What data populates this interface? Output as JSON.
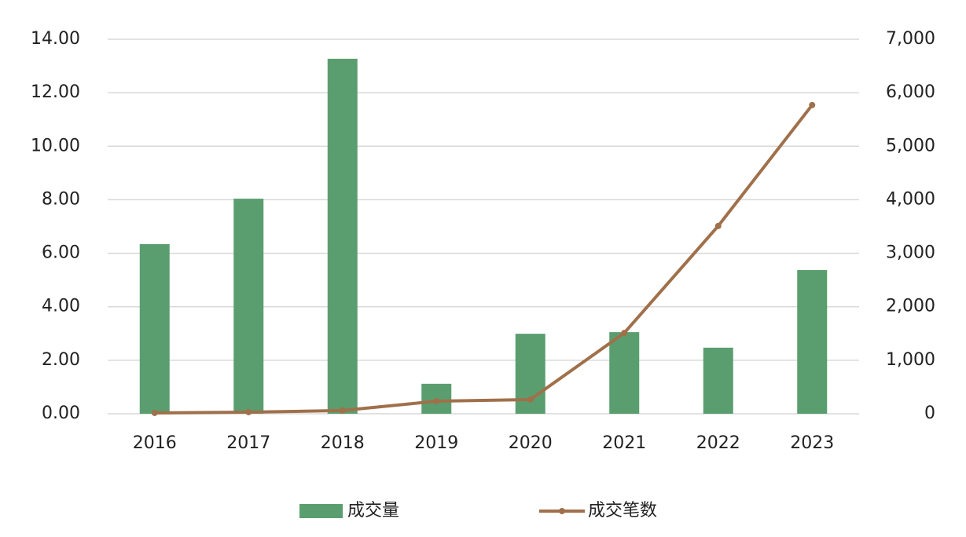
{
  "chart_data": {
    "type": "bar",
    "categories": [
      "2016",
      "2017",
      "2018",
      "2019",
      "2020",
      "2021",
      "2022",
      "2023"
    ],
    "series": [
      {
        "name": "成交量",
        "type": "bar",
        "color": "#5a9e6f",
        "values": [
          6.34,
          8.04,
          13.27,
          1.12,
          2.99,
          3.05,
          2.47,
          5.37
        ]
      },
      {
        "name": "成交笔数",
        "type": "line",
        "axis": "y2",
        "color": "#a0704a",
        "values": [
          15,
          30,
          60,
          235,
          265,
          1510,
          3510,
          5770
        ]
      }
    ],
    "ylim": [
      0,
      14
    ],
    "yticks": [
      {
        "value": 0,
        "label": "0.00"
      },
      {
        "value": 2,
        "label": "2.00"
      },
      {
        "value": 4,
        "label": "4.00"
      },
      {
        "value": 6,
        "label": "6.00"
      },
      {
        "value": 8,
        "label": "8.00"
      },
      {
        "value": 10,
        "label": "10.00"
      },
      {
        "value": 12,
        "label": "12.00"
      },
      {
        "value": 14,
        "label": "14.00"
      }
    ],
    "y2lim": [
      0,
      7000
    ],
    "y2ticks": [
      0,
      {
        "value": 1000,
        "label": "1,000"
      },
      {
        "value": 2000,
        "label": "2,000"
      },
      {
        "value": 3000,
        "label": "3,000"
      },
      {
        "value": 4000,
        "label": "4,000"
      },
      {
        "value": 5000,
        "label": "5,000"
      },
      {
        "value": 6000,
        "label": "6,000"
      },
      {
        "value": 7000,
        "label": "7,000"
      }
    ],
    "grid": true,
    "legend": "bottom"
  }
}
